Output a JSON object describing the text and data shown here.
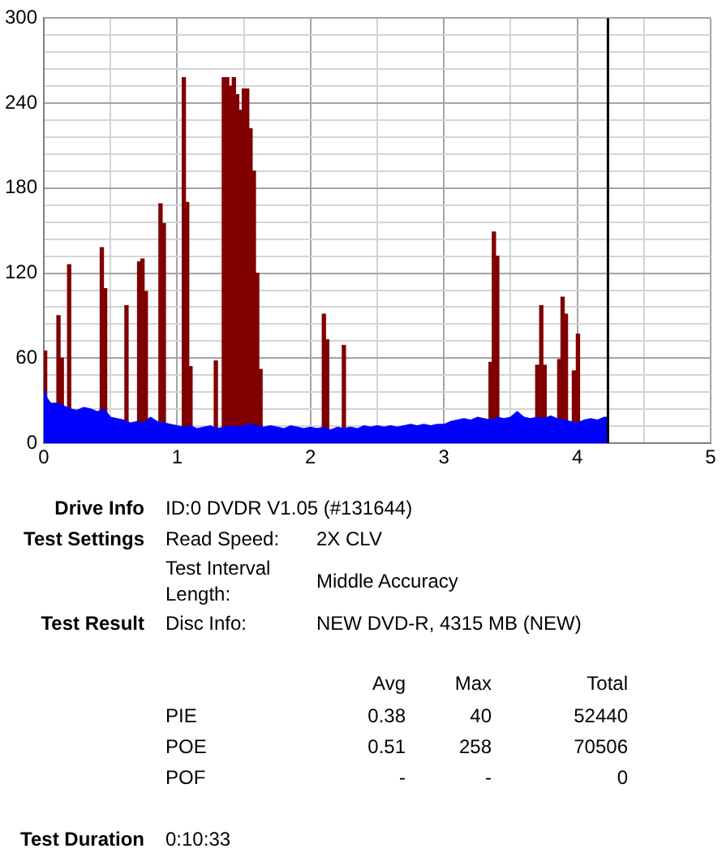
{
  "chart_data": {
    "type": "bar",
    "xlim": [
      0,
      5
    ],
    "xticks": [
      0,
      {
        "value": 0.5,
        "label": null
      },
      1,
      {
        "value": 1.5,
        "label": null
      },
      2,
      {
        "value": 2.5,
        "label": null
      },
      3,
      {
        "value": 3.5,
        "label": null
      },
      4,
      {
        "value": 4.5,
        "label": null
      },
      5
    ],
    "ylim": [
      0,
      300
    ],
    "yticks": [
      0,
      {
        "value": 12,
        "label": null
      },
      {
        "value": 24,
        "label": null
      },
      {
        "value": 36,
        "label": null
      },
      {
        "value": 48,
        "label": null
      },
      60,
      {
        "value": 72,
        "label": null
      },
      {
        "value": 84,
        "label": null
      },
      {
        "value": 96,
        "label": null
      },
      {
        "value": 108,
        "label": null
      },
      120,
      {
        "value": 132,
        "label": null
      },
      {
        "value": 144,
        "label": null
      },
      {
        "value": 156,
        "label": null
      },
      {
        "value": 168,
        "label": null
      },
      180,
      {
        "value": 192,
        "label": null
      },
      {
        "value": 204,
        "label": null
      },
      {
        "value": 216,
        "label": null
      },
      {
        "value": 228,
        "label": null
      },
      240,
      {
        "value": 252,
        "label": null
      },
      {
        "value": 264,
        "label": null
      },
      {
        "value": 276,
        "label": null
      },
      {
        "value": 288,
        "label": null
      },
      300
    ],
    "grid": true,
    "series": [
      {
        "color": "#800000",
        "x": [
          0.01,
          0.11,
          0.135,
          0.19,
          0.435,
          0.46,
          0.62,
          0.715,
          0.74,
          0.765,
          0.875,
          0.9,
          1.05,
          1.075,
          1.1,
          1.29,
          1.35,
          1.375,
          1.4,
          1.425,
          1.45,
          1.475,
          1.5,
          1.525,
          1.55,
          1.575,
          1.6,
          1.625,
          2.1,
          2.125,
          2.25,
          3.35,
          3.375,
          3.4,
          3.7,
          3.73,
          3.755,
          3.865,
          3.89,
          3.915,
          3.975,
          4.005
        ],
        "values": [
          65,
          90,
          60,
          126,
          138,
          109,
          97,
          128,
          130,
          107,
          169,
          155,
          258,
          170,
          54,
          58,
          258,
          258,
          252,
          258,
          246,
          235,
          250,
          250,
          222,
          192,
          120,
          52,
          91,
          73,
          69,
          57,
          149,
          132,
          55,
          97,
          55,
          59,
          103,
          91,
          51,
          77
        ]
      },
      {
        "type": "area",
        "color": "#0000ff",
        "x": [
          0,
          0.02,
          0.05,
          0.1,
          0.15,
          0.2,
          0.25,
          0.3,
          0.35,
          0.4,
          0.45,
          0.5,
          0.55,
          0.6,
          0.65,
          0.7,
          0.75,
          0.8,
          0.85,
          0.9,
          0.95,
          1,
          1.05,
          1.1,
          1.15,
          1.2,
          1.25,
          1.3,
          1.35,
          1.4,
          1.45,
          1.5,
          1.55,
          1.6,
          1.65,
          1.7,
          1.75,
          1.8,
          1.85,
          1.9,
          1.95,
          2,
          2.05,
          2.1,
          2.15,
          2.2,
          2.25,
          2.3,
          2.35,
          2.4,
          2.45,
          2.5,
          2.55,
          2.6,
          2.65,
          2.7,
          2.75,
          2.8,
          2.85,
          2.9,
          2.95,
          3,
          3.05,
          3.1,
          3.15,
          3.2,
          3.25,
          3.3,
          3.35,
          3.4,
          3.45,
          3.5,
          3.55,
          3.6,
          3.65,
          3.7,
          3.75,
          3.8,
          3.85,
          3.9,
          3.95,
          4,
          4.05,
          4.1,
          4.15,
          4.2,
          4.23
        ],
        "values": [
          38,
          32,
          28,
          28,
          26,
          24,
          23,
          25,
          24,
          22,
          24,
          18,
          17,
          16,
          14,
          15,
          14,
          18,
          15,
          14,
          13,
          12,
          11,
          12,
          10,
          11,
          12,
          10,
          11,
          12,
          11,
          12,
          13,
          12,
          11,
          12,
          11,
          10,
          12,
          11,
          10,
          11,
          10,
          11,
          9,
          11,
          10,
          11,
          10,
          12,
          11,
          12,
          11,
          12,
          11,
          12,
          13,
          12,
          13,
          12,
          13,
          13,
          15,
          16,
          17,
          16,
          18,
          17,
          16,
          18,
          17,
          18,
          22,
          18,
          17,
          18,
          17,
          19,
          17,
          16,
          15,
          14,
          16,
          17,
          16,
          18,
          18
        ]
      }
    ],
    "ref_lines": [
      {
        "axis": "x",
        "value": 4.23,
        "color": "#000000"
      }
    ],
    "annotations": [
      "Drive Info",
      "ID:0 DVDR V1.05 (#131644)",
      "Test Settings",
      "Read Speed:",
      "2X CLV",
      "Test Interval Length:",
      "Middle Accuracy",
      "Test Result",
      "Disc Info:",
      "NEW DVD-R, 4315 MB (NEW)",
      "Avg",
      "Max",
      "Total",
      "PIE",
      "0.38",
      "40",
      "52440",
      "POE",
      "0.51",
      "258",
      "70506",
      "POF",
      "-",
      "-",
      "0",
      "Test Duration",
      "0:10:33"
    ]
  }
}
